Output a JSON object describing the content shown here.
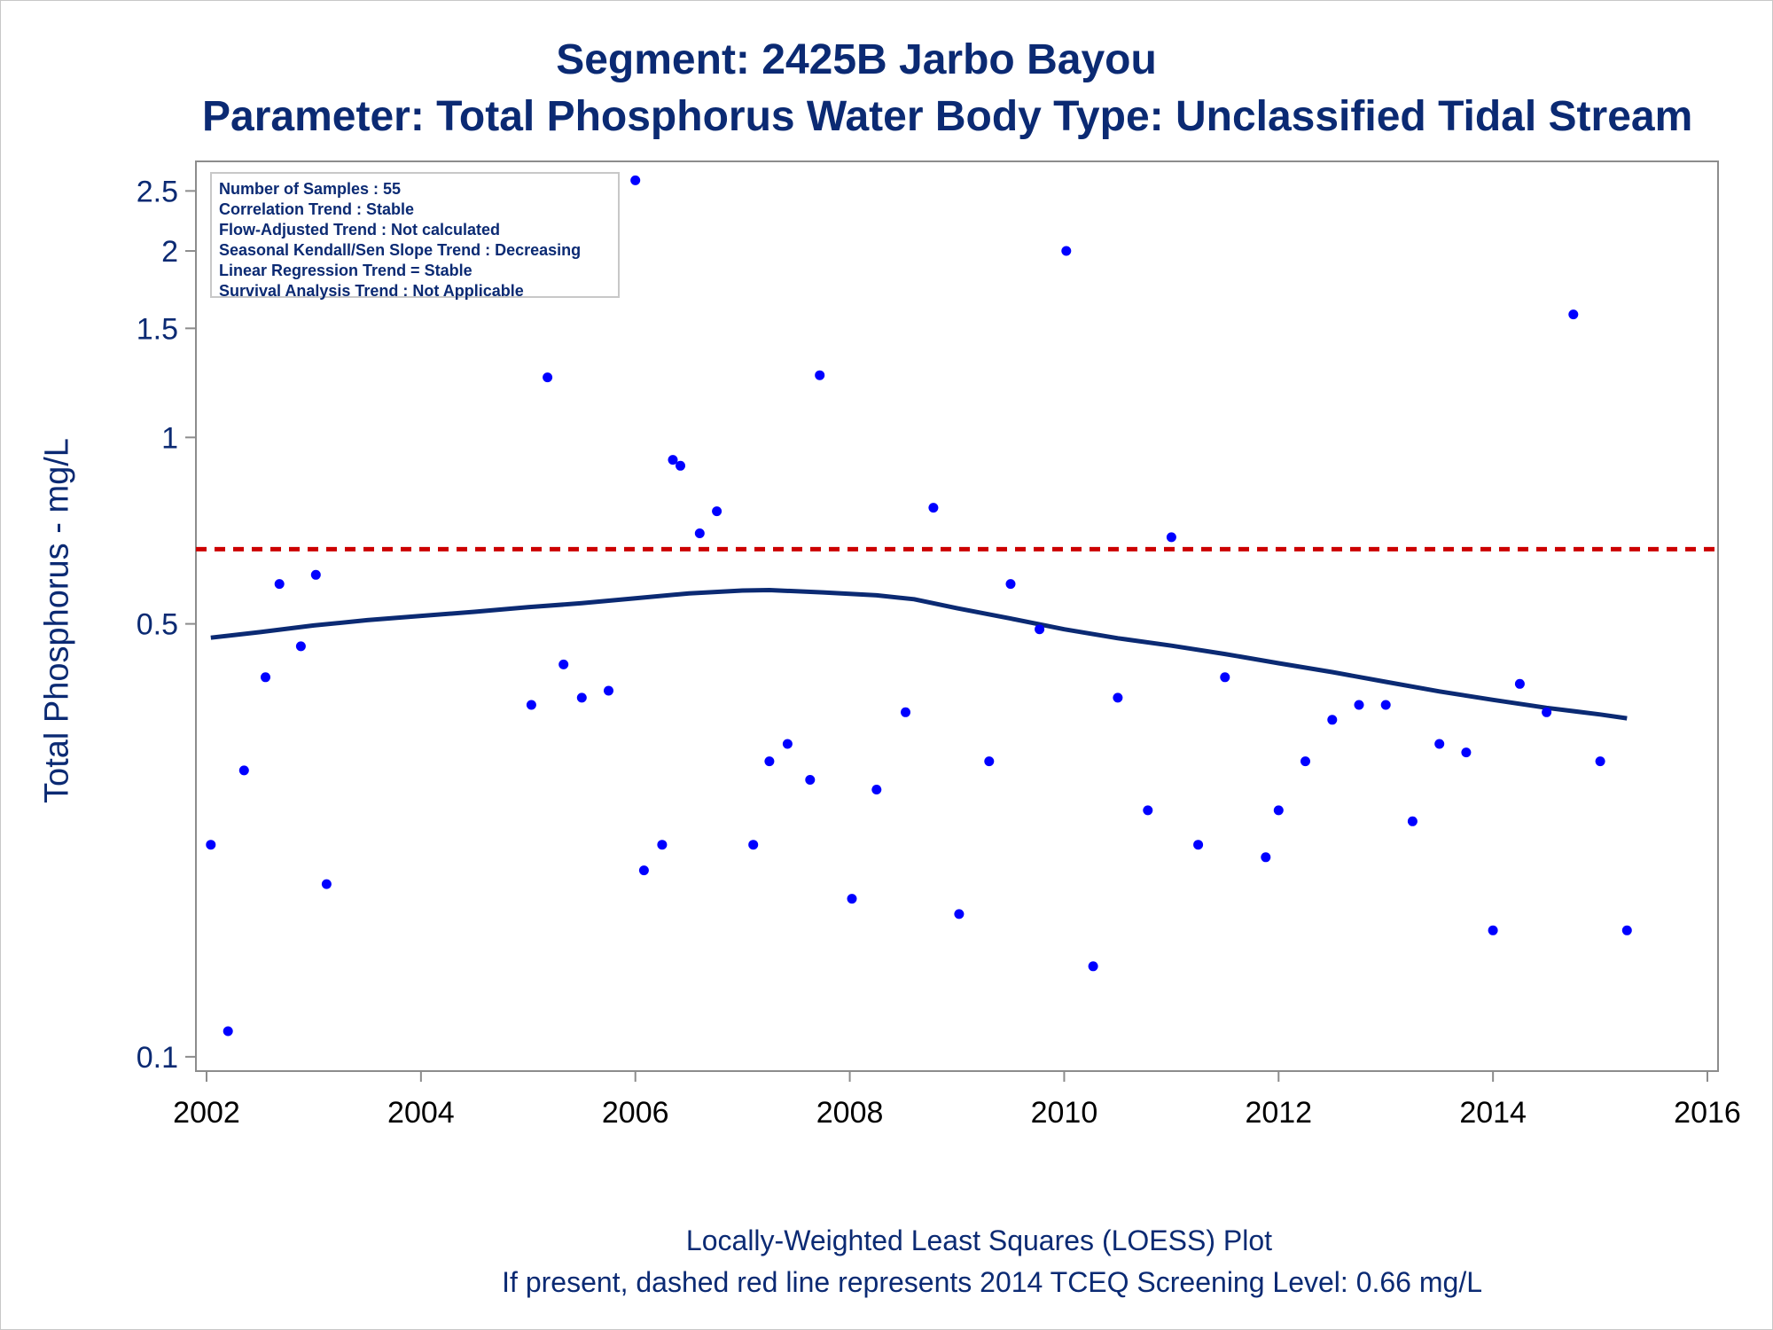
{
  "title": "Segment: 2425B  Jarbo Bayou",
  "subtitle": "Parameter: Total Phosphorus   Water Body Type: Unclassified Tidal Stream",
  "footnote1": "Locally-Weighted Least Squares (LOESS) Plot",
  "footnote2": "If present, dashed red line represents 2014 TCEQ Screening Level: 0.66 mg/L",
  "stats": [
    "Number of Samples : 55",
    "Correlation Trend : Stable",
    "Flow-Adjusted Trend : Not calculated",
    "Seasonal Kendall/Sen Slope Trend : Decreasing",
    "Linear Regression Trend = Stable",
    "Survival Analysis Trend : Not Applicable"
  ],
  "colors": {
    "text": "#0b2a73",
    "points": "#0000ff",
    "loess": "#0b2a73",
    "screening": "#cc0000",
    "axis": "#8c8c8c"
  },
  "chart_data": {
    "type": "scatter",
    "ylabel": "Total Phosphorus - mg/L",
    "xlabel": "",
    "y_scale": "log",
    "xlim": [
      2002,
      2016
    ],
    "ylim": [
      0.098,
      2.7
    ],
    "x_ticks": [
      2002,
      2004,
      2006,
      2008,
      2010,
      2012,
      2014,
      2016
    ],
    "x_tick_labels": [
      "2002",
      "2004",
      "2006",
      "2008",
      "2010",
      "2012",
      "2014",
      "2016"
    ],
    "y_ticks": [
      0.1,
      0.5,
      1,
      1.5,
      2,
      2.5
    ],
    "y_tick_labels": [
      "0.1",
      "0.5",
      "1",
      "1.5",
      "2",
      "2.5"
    ],
    "screening_level": 0.66,
    "series": [
      {
        "kind": "points",
        "points": [
          [
            2002.04,
            0.22
          ],
          [
            2002.2,
            0.11
          ],
          [
            2002.35,
            0.29
          ],
          [
            2002.55,
            0.41
          ],
          [
            2002.68,
            0.58
          ],
          [
            2002.88,
            0.46
          ],
          [
            2003.02,
            0.6
          ],
          [
            2003.12,
            0.19
          ],
          [
            2005.03,
            0.37
          ],
          [
            2005.18,
            1.25
          ],
          [
            2005.33,
            0.43
          ],
          [
            2005.5,
            0.38
          ],
          [
            2005.75,
            0.39
          ],
          [
            2006.0,
            2.6
          ],
          [
            2006.08,
            0.2
          ],
          [
            2006.25,
            0.22
          ],
          [
            2006.35,
            0.92
          ],
          [
            2006.42,
            0.9
          ],
          [
            2006.6,
            0.7
          ],
          [
            2006.76,
            0.76
          ],
          [
            2007.1,
            0.22
          ],
          [
            2007.25,
            0.3
          ],
          [
            2007.42,
            0.32
          ],
          [
            2007.63,
            0.28
          ],
          [
            2007.72,
            1.26
          ],
          [
            2008.02,
            0.18
          ],
          [
            2008.25,
            0.27
          ],
          [
            2008.52,
            0.36
          ],
          [
            2008.78,
            0.77
          ],
          [
            2009.02,
            0.17
          ],
          [
            2009.3,
            0.3
          ],
          [
            2009.5,
            0.58
          ],
          [
            2009.77,
            0.49
          ],
          [
            2010.02,
            2.0
          ],
          [
            2010.27,
            0.14
          ],
          [
            2010.5,
            0.38
          ],
          [
            2010.78,
            0.25
          ],
          [
            2011.0,
            0.69
          ],
          [
            2011.25,
            0.22
          ],
          [
            2011.5,
            0.41
          ],
          [
            2011.88,
            0.21
          ],
          [
            2012.0,
            0.25
          ],
          [
            2012.25,
            0.3
          ],
          [
            2012.5,
            0.35
          ],
          [
            2012.75,
            0.37
          ],
          [
            2013.0,
            0.37
          ],
          [
            2013.25,
            0.24
          ],
          [
            2013.5,
            0.32
          ],
          [
            2013.75,
            0.31
          ],
          [
            2014.0,
            0.16
          ],
          [
            2014.25,
            0.4
          ],
          [
            2014.5,
            0.36
          ],
          [
            2014.75,
            1.58
          ],
          [
            2015.0,
            0.3
          ],
          [
            2015.25,
            0.16
          ]
        ]
      },
      {
        "kind": "loess",
        "points": [
          [
            2002.04,
            0.475
          ],
          [
            2002.5,
            0.485
          ],
          [
            2003.0,
            0.497
          ],
          [
            2003.5,
            0.507
          ],
          [
            2004.0,
            0.515
          ],
          [
            2004.5,
            0.523
          ],
          [
            2005.0,
            0.532
          ],
          [
            2005.5,
            0.54
          ],
          [
            2006.0,
            0.55
          ],
          [
            2006.5,
            0.56
          ],
          [
            2007.0,
            0.566
          ],
          [
            2007.25,
            0.567
          ],
          [
            2007.75,
            0.562
          ],
          [
            2008.25,
            0.556
          ],
          [
            2008.6,
            0.548
          ],
          [
            2009.0,
            0.53
          ],
          [
            2009.5,
            0.51
          ],
          [
            2010.0,
            0.49
          ],
          [
            2010.5,
            0.474
          ],
          [
            2011.0,
            0.461
          ],
          [
            2011.5,
            0.447
          ],
          [
            2012.0,
            0.432
          ],
          [
            2012.5,
            0.418
          ],
          [
            2013.0,
            0.403
          ],
          [
            2013.5,
            0.389
          ],
          [
            2014.0,
            0.377
          ],
          [
            2014.5,
            0.366
          ],
          [
            2015.0,
            0.357
          ],
          [
            2015.25,
            0.352
          ]
        ]
      }
    ]
  }
}
